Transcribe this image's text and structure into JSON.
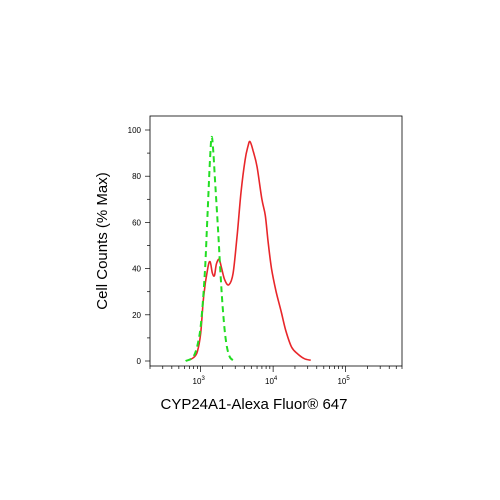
{
  "chart_data": {
    "type": "line",
    "title": "",
    "xlabel": "CYP24A1-Alexa Fluor® 647",
    "ylabel": "Cell Counts (% Max)",
    "xscale": "log",
    "xlim": [
      200,
      600000
    ],
    "ylim": [
      0,
      100
    ],
    "x_ticks": [
      {
        "value": 1000,
        "label": "10",
        "exponent": "3"
      },
      {
        "value": 10000,
        "label": "10",
        "exponent": "4"
      },
      {
        "value": 100000,
        "label": "10",
        "exponent": "5"
      }
    ],
    "y_ticks": [
      0,
      20,
      40,
      60,
      80,
      100
    ],
    "grid": false,
    "series": [
      {
        "color": "#e8262a",
        "style": "solid",
        "points": [
          [
            700,
            0.5
          ],
          [
            800,
            1.5
          ],
          [
            900,
            4
          ],
          [
            1000,
            12
          ],
          [
            1100,
            28
          ],
          [
            1250,
            40
          ],
          [
            1350,
            43
          ],
          [
            1450,
            38
          ],
          [
            1550,
            37
          ],
          [
            1650,
            42
          ],
          [
            1800,
            44
          ],
          [
            1950,
            40
          ],
          [
            2150,
            35
          ],
          [
            2450,
            33
          ],
          [
            2800,
            38
          ],
          [
            3200,
            55
          ],
          [
            3600,
            73
          ],
          [
            4100,
            87
          ],
          [
            4500,
            93
          ],
          [
            4800,
            95
          ],
          [
            5300,
            91
          ],
          [
            6000,
            84
          ],
          [
            7000,
            70
          ],
          [
            7800,
            63
          ],
          [
            8500,
            52
          ],
          [
            9500,
            40
          ],
          [
            11000,
            30
          ],
          [
            13000,
            21
          ],
          [
            15000,
            13
          ],
          [
            18000,
            6
          ],
          [
            22000,
            3
          ],
          [
            27000,
            1
          ],
          [
            33000,
            0.3
          ]
        ]
      },
      {
        "color": "#22dd22",
        "style": "dashed",
        "points": [
          [
            620,
            0
          ],
          [
            800,
            2
          ],
          [
            950,
            10
          ],
          [
            1050,
            22
          ],
          [
            1150,
            40
          ],
          [
            1250,
            65
          ],
          [
            1350,
            88
          ],
          [
            1420,
            97
          ],
          [
            1500,
            90
          ],
          [
            1600,
            75
          ],
          [
            1750,
            55
          ],
          [
            1900,
            35
          ],
          [
            2050,
            20
          ],
          [
            2250,
            8
          ],
          [
            2500,
            2
          ],
          [
            2800,
            0.3
          ],
          [
            3000,
            0
          ]
        ]
      }
    ]
  }
}
